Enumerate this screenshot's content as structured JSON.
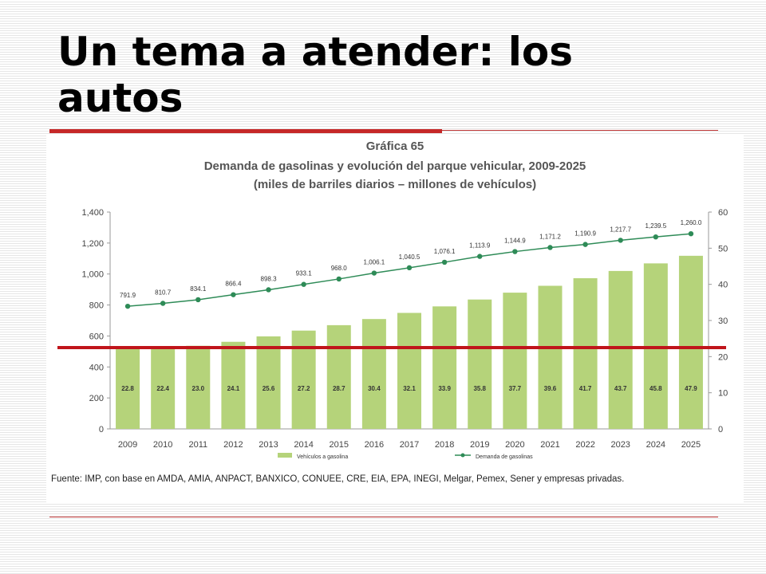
{
  "slide": {
    "title": "Un tema a atender: los autos"
  },
  "chart_data": {
    "type": "bar+line",
    "heading": "Gráfica 65",
    "title": "Demanda de gasolinas y evolución del parque vehicular, 2009-2025",
    "subtitle": "(miles de barriles diarios – millones de vehículos)",
    "categories": [
      "2009",
      "2010",
      "2011",
      "2012",
      "2013",
      "2014",
      "2015",
      "2016",
      "2017",
      "2018",
      "2019",
      "2020",
      "2021",
      "2022",
      "2023",
      "2024",
      "2025"
    ],
    "series": [
      {
        "name": "Vehículos a gasolina",
        "type": "bar",
        "axis": "right",
        "color": "#b5d37a",
        "values": [
          22.8,
          22.4,
          23.0,
          24.1,
          25.6,
          27.2,
          28.7,
          30.4,
          32.1,
          33.9,
          35.8,
          37.7,
          39.6,
          41.7,
          43.7,
          45.8,
          47.9
        ],
        "labels": [
          "22.8",
          "22.4",
          "23.0",
          "24.1",
          "25.6",
          "27.2",
          "28.7",
          "30.4",
          "32.1",
          "33.9",
          "35.8",
          "37.7",
          "39.6",
          "41.7",
          "43.7",
          "45.8",
          "47.9"
        ]
      },
      {
        "name": "Demanda de gasolinas",
        "type": "line",
        "axis": "left",
        "color": "#2e8b57",
        "values": [
          791.9,
          810.7,
          834.1,
          866.4,
          898.3,
          933.1,
          968.0,
          1006.1,
          1040.5,
          1076.1,
          1113.9,
          1144.9,
          1171.2,
          1190.9,
          1217.7,
          1239.5,
          1260.0
        ],
        "labels": [
          "791.9",
          "810.7",
          "834.1",
          "866.4",
          "898.3",
          "933.1",
          "968.0",
          "1,006.1",
          "1,040.5",
          "1,076.1",
          "1,113.9",
          "1,144.9",
          "1,171.2",
          "1,190.9",
          "1,217.7",
          "1,239.5",
          "1,260.0"
        ]
      }
    ],
    "y_left": {
      "range": [
        0,
        1400
      ],
      "ticks": [
        0,
        200,
        400,
        600,
        800,
        1000,
        1200,
        1400
      ],
      "tick_labels": [
        "0",
        "200",
        "400",
        "600",
        "800",
        "1,000",
        "1,200",
        "1,400"
      ]
    },
    "y_right": {
      "range": [
        0,
        60
      ],
      "ticks": [
        0,
        10,
        20,
        30,
        40,
        50,
        60
      ],
      "tick_labels": [
        "0",
        "10",
        "20",
        "30",
        "40",
        "50",
        "60"
      ]
    },
    "legend_position": "bottom",
    "source": "Fuente: IMP, con base en AMDA, AMIA, ANPACT, BANXICO, CONUEE, CRE, EIA, EPA, INEGI, Melgar, Pemex, Sener y empresas privadas.",
    "grid": false,
    "overlay_line_color": "#c0151b"
  }
}
